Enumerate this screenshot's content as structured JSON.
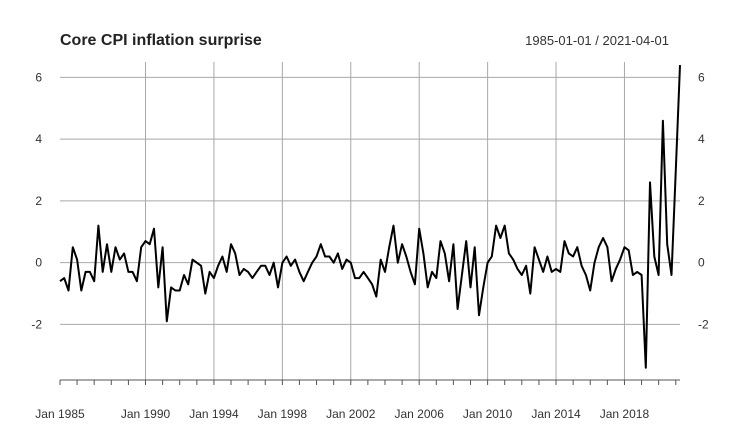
{
  "chart_data": {
    "type": "line",
    "title": "Core CPI inflation surprise",
    "date_range_label": "1985-01-01 / 2021-04-01",
    "xlabel": "",
    "ylabel": "",
    "xlim": [
      "1985-01-01",
      "2021-04-01"
    ],
    "ylim": [
      -3.8,
      6.5
    ],
    "grid": true,
    "legend": "none",
    "y_ticks": [
      -2,
      0,
      2,
      4,
      6
    ],
    "y_tick_labels": [
      "-2",
      "0",
      "2",
      "4",
      "6"
    ],
    "x_tick_labels": [
      {
        "date": "1985-01-01",
        "label": "Jan 1985"
      },
      {
        "date": "1990-01-01",
        "label": "Jan 1990"
      },
      {
        "date": "1994-01-01",
        "label": "Jan 1994"
      },
      {
        "date": "1998-01-01",
        "label": "Jan 1998"
      },
      {
        "date": "2002-01-01",
        "label": "Jan 2002"
      },
      {
        "date": "2006-01-01",
        "label": "Jan 2006"
      },
      {
        "date": "2010-01-01",
        "label": "Jan 2010"
      },
      {
        "date": "2014-01-01",
        "label": "Jan 2014"
      },
      {
        "date": "2018-01-01",
        "label": "Jan 2018"
      }
    ],
    "series": [
      {
        "color": "#000000",
        "points": [
          [
            "1985-01-01",
            -0.6
          ],
          [
            "1985-04-01",
            -0.5
          ],
          [
            "1985-07-01",
            -0.9
          ],
          [
            "1985-10-01",
            0.5
          ],
          [
            "1986-01-01",
            0.1
          ],
          [
            "1986-04-01",
            -0.9
          ],
          [
            "1986-07-01",
            -0.3
          ],
          [
            "1986-10-01",
            -0.3
          ],
          [
            "1987-01-01",
            -0.6
          ],
          [
            "1987-04-01",
            1.2
          ],
          [
            "1987-07-01",
            -0.3
          ],
          [
            "1987-10-01",
            0.6
          ],
          [
            "1988-01-01",
            -0.3
          ],
          [
            "1988-04-01",
            0.5
          ],
          [
            "1988-07-01",
            0.1
          ],
          [
            "1988-10-01",
            0.3
          ],
          [
            "1989-01-01",
            -0.3
          ],
          [
            "1989-04-01",
            -0.3
          ],
          [
            "1989-07-01",
            -0.6
          ],
          [
            "1989-10-01",
            0.5
          ],
          [
            "1990-01-01",
            0.7
          ],
          [
            "1990-04-01",
            0.6
          ],
          [
            "1990-07-01",
            1.1
          ],
          [
            "1990-10-01",
            -0.8
          ],
          [
            "1991-01-01",
            0.5
          ],
          [
            "1991-04-01",
            -1.9
          ],
          [
            "1991-07-01",
            -0.8
          ],
          [
            "1991-10-01",
            -0.9
          ],
          [
            "1992-01-01",
            -0.9
          ],
          [
            "1992-04-01",
            -0.4
          ],
          [
            "1992-07-01",
            -0.7
          ],
          [
            "1992-10-01",
            0.1
          ],
          [
            "1993-01-01",
            0.0
          ],
          [
            "1993-04-01",
            -0.1
          ],
          [
            "1993-07-01",
            -1.0
          ],
          [
            "1993-10-01",
            -0.3
          ],
          [
            "1994-01-01",
            -0.5
          ],
          [
            "1994-04-01",
            -0.1
          ],
          [
            "1994-07-01",
            0.2
          ],
          [
            "1994-10-01",
            -0.3
          ],
          [
            "1995-01-01",
            0.6
          ],
          [
            "1995-04-01",
            0.3
          ],
          [
            "1995-07-01",
            -0.4
          ],
          [
            "1995-10-01",
            -0.2
          ],
          [
            "1996-01-01",
            -0.3
          ],
          [
            "1996-04-01",
            -0.5
          ],
          [
            "1996-07-01",
            -0.3
          ],
          [
            "1996-10-01",
            -0.1
          ],
          [
            "1997-01-01",
            -0.1
          ],
          [
            "1997-04-01",
            -0.4
          ],
          [
            "1997-07-01",
            0.0
          ],
          [
            "1997-10-01",
            -0.8
          ],
          [
            "1998-01-01",
            0.0
          ],
          [
            "1998-04-01",
            0.2
          ],
          [
            "1998-07-01",
            -0.1
          ],
          [
            "1998-10-01",
            0.1
          ],
          [
            "1999-01-01",
            -0.3
          ],
          [
            "1999-04-01",
            -0.6
          ],
          [
            "1999-07-01",
            -0.3
          ],
          [
            "1999-10-01",
            0.0
          ],
          [
            "2000-01-01",
            0.2
          ],
          [
            "2000-04-01",
            0.6
          ],
          [
            "2000-07-01",
            0.2
          ],
          [
            "2000-10-01",
            0.2
          ],
          [
            "2001-01-01",
            0.0
          ],
          [
            "2001-04-01",
            0.3
          ],
          [
            "2001-07-01",
            -0.2
          ],
          [
            "2001-10-01",
            0.1
          ],
          [
            "2002-01-01",
            0.0
          ],
          [
            "2002-04-01",
            -0.5
          ],
          [
            "2002-07-01",
            -0.5
          ],
          [
            "2002-10-01",
            -0.3
          ],
          [
            "2003-01-01",
            -0.5
          ],
          [
            "2003-04-01",
            -0.7
          ],
          [
            "2003-07-01",
            -1.1
          ],
          [
            "2003-10-01",
            0.1
          ],
          [
            "2004-01-01",
            -0.3
          ],
          [
            "2004-04-01",
            0.5
          ],
          [
            "2004-07-01",
            1.2
          ],
          [
            "2004-10-01",
            0.0
          ],
          [
            "2005-01-01",
            0.6
          ],
          [
            "2005-04-01",
            0.2
          ],
          [
            "2005-07-01",
            -0.3
          ],
          [
            "2005-10-01",
            -0.7
          ],
          [
            "2006-01-01",
            1.1
          ],
          [
            "2006-04-01",
            0.3
          ],
          [
            "2006-07-01",
            -0.8
          ],
          [
            "2006-10-01",
            -0.3
          ],
          [
            "2007-01-01",
            -0.5
          ],
          [
            "2007-04-01",
            0.7
          ],
          [
            "2007-07-01",
            0.3
          ],
          [
            "2007-10-01",
            -0.6
          ],
          [
            "2008-01-01",
            0.6
          ],
          [
            "2008-04-01",
            -1.5
          ],
          [
            "2008-07-01",
            -0.4
          ],
          [
            "2008-10-01",
            0.7
          ],
          [
            "2009-01-01",
            -0.8
          ],
          [
            "2009-04-01",
            0.5
          ],
          [
            "2009-07-01",
            -1.7
          ],
          [
            "2009-10-01",
            -0.8
          ],
          [
            "2010-01-01",
            0.0
          ],
          [
            "2010-04-01",
            0.2
          ],
          [
            "2010-07-01",
            1.2
          ],
          [
            "2010-10-01",
            0.8
          ],
          [
            "2011-01-01",
            1.2
          ],
          [
            "2011-04-01",
            0.3
          ],
          [
            "2011-07-01",
            0.1
          ],
          [
            "2011-10-01",
            -0.2
          ],
          [
            "2012-01-01",
            -0.4
          ],
          [
            "2012-04-01",
            -0.1
          ],
          [
            "2012-07-01",
            -1.0
          ],
          [
            "2012-10-01",
            0.5
          ],
          [
            "2013-01-01",
            0.1
          ],
          [
            "2013-04-01",
            -0.3
          ],
          [
            "2013-07-01",
            0.2
          ],
          [
            "2013-10-01",
            -0.3
          ],
          [
            "2014-01-01",
            -0.2
          ],
          [
            "2014-04-01",
            -0.3
          ],
          [
            "2014-07-01",
            0.7
          ],
          [
            "2014-10-01",
            0.3
          ],
          [
            "2015-01-01",
            0.2
          ],
          [
            "2015-04-01",
            0.5
          ],
          [
            "2015-07-01",
            -0.1
          ],
          [
            "2015-10-01",
            -0.4
          ],
          [
            "2016-01-01",
            -0.9
          ],
          [
            "2016-04-01",
            0.0
          ],
          [
            "2016-07-01",
            0.5
          ],
          [
            "2016-10-01",
            0.8
          ],
          [
            "2017-01-01",
            0.5
          ],
          [
            "2017-04-01",
            -0.6
          ],
          [
            "2017-07-01",
            -0.2
          ],
          [
            "2017-10-01",
            0.1
          ],
          [
            "2018-01-01",
            0.5
          ],
          [
            "2018-04-01",
            0.4
          ],
          [
            "2018-07-01",
            -0.4
          ],
          [
            "2018-10-01",
            -0.3
          ],
          [
            "2019-01-01",
            -0.4
          ],
          [
            "2019-04-01",
            -3.4
          ],
          [
            "2019-07-01",
            2.6
          ],
          [
            "2019-10-01",
            0.2
          ],
          [
            "2020-01-01",
            -0.4
          ],
          [
            "2020-04-01",
            4.6
          ],
          [
            "2020-07-01",
            0.6
          ],
          [
            "2020-10-01",
            -0.4
          ],
          [
            "2021-01-01",
            3.0
          ],
          [
            "2021-04-01",
            6.4
          ]
        ]
      }
    ]
  }
}
